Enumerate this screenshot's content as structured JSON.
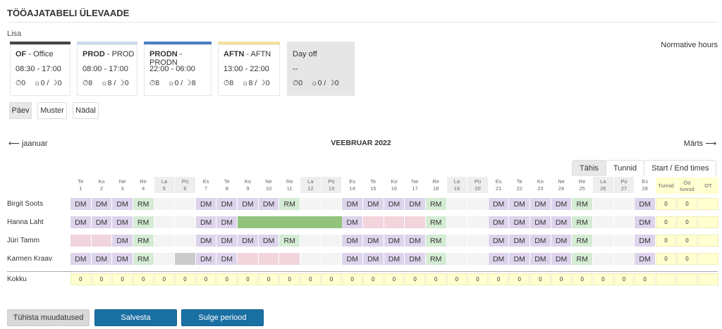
{
  "page": {
    "title": "TÖÖAJATABELI ÜLEVAADE",
    "add_label": "Lisa",
    "normative_label": "Normative hours"
  },
  "shifts": [
    {
      "code": "OF",
      "name": "Office",
      "time": "08:30 - 17:00",
      "hours": "0",
      "daynight": "0 / ",
      "night": "0",
      "color": "#444444"
    },
    {
      "code": "PROD",
      "name": "PROD",
      "time": "08:00 - 17:00",
      "hours": "8",
      "daynight": "8 / ",
      "night": "0",
      "color": "#c9d9ee"
    },
    {
      "code": "PRODN",
      "name": "PRODN",
      "time": "22:00 - 06:00",
      "hours": "8",
      "daynight": "0 / ",
      "night": "8",
      "color": "#4a7fc4"
    },
    {
      "code": "AFTN",
      "name": "AFTN",
      "time": "13:00 - 22:00",
      "hours": "8",
      "daynight": "8 / ",
      "night": "0",
      "color": "#f4e29c"
    },
    {
      "code": "",
      "name": "Day off",
      "time": "--",
      "hours": "0",
      "daynight": "0 / ",
      "night": "0",
      "color": "#e6e6e6"
    }
  ],
  "view_buttons": [
    "Päev",
    "Muster",
    "Nädal"
  ],
  "calendar": {
    "prev_label": "jaanuar",
    "month_title": "VEEBRUAR 2022",
    "next_label": "Märts",
    "tabs": [
      "Tähis",
      "Tunnid",
      "Start / End times"
    ],
    "days": [
      {
        "wd": "Te",
        "d": "1",
        "we": false
      },
      {
        "wd": "Ko",
        "d": "2",
        "we": false
      },
      {
        "wd": "Ne",
        "d": "3",
        "we": false
      },
      {
        "wd": "Re",
        "d": "4",
        "we": false
      },
      {
        "wd": "La",
        "d": "5",
        "we": true
      },
      {
        "wd": "Pü",
        "d": "6",
        "we": true
      },
      {
        "wd": "Es",
        "d": "7",
        "we": false
      },
      {
        "wd": "Te",
        "d": "8",
        "we": false
      },
      {
        "wd": "Ko",
        "d": "9",
        "we": false
      },
      {
        "wd": "Ne",
        "d": "10",
        "we": false
      },
      {
        "wd": "Re",
        "d": "11",
        "we": false
      },
      {
        "wd": "La",
        "d": "12",
        "we": true
      },
      {
        "wd": "Pü",
        "d": "13",
        "we": true
      },
      {
        "wd": "Es",
        "d": "14",
        "we": false
      },
      {
        "wd": "Te",
        "d": "15",
        "we": false
      },
      {
        "wd": "Ko",
        "d": "16",
        "we": false
      },
      {
        "wd": "Ne",
        "d": "17",
        "we": false
      },
      {
        "wd": "Re",
        "d": "18",
        "we": false
      },
      {
        "wd": "La",
        "d": "19",
        "we": true
      },
      {
        "wd": "Pü",
        "d": "20",
        "we": true
      },
      {
        "wd": "Es",
        "d": "21",
        "we": false
      },
      {
        "wd": "Te",
        "d": "22",
        "we": false
      },
      {
        "wd": "Ko",
        "d": "23",
        "we": false
      },
      {
        "wd": "Ne",
        "d": "24",
        "we": false
      },
      {
        "wd": "Re",
        "d": "25",
        "we": false
      },
      {
        "wd": "La",
        "d": "26",
        "we": true
      },
      {
        "wd": "Pü",
        "d": "27",
        "we": true
      },
      {
        "wd": "Es",
        "d": "28",
        "we": false
      }
    ],
    "summary_headers": [
      "Tunnid",
      "Öö tunnid",
      "OT"
    ],
    "colors": {
      "DM": "#ddd4ec",
      "RM": "#d4ebd4",
      "G": "#93c47d",
      "P": "#f2d4dc",
      "X": "#cccccc",
      "E": "#f4f4f4"
    },
    "employees": [
      {
        "name": "Birgit Soots",
        "cells": [
          "DM",
          "DM",
          "DM",
          "RM",
          "E",
          "E",
          "DM",
          "DM",
          "DM",
          "DM",
          "RM",
          "E",
          "E",
          "DM",
          "DM",
          "DM",
          "DM",
          "RM",
          "E",
          "E",
          "DM",
          "DM",
          "DM",
          "DM",
          "RM",
          "E",
          "E",
          "DM"
        ],
        "totals": [
          "0",
          "0",
          ""
        ]
      },
      {
        "name": "Hanna Laht",
        "cells": [
          "DM",
          "DM",
          "DM",
          "RM",
          "E",
          "E",
          "DM",
          "DM",
          "G",
          "G",
          "G",
          "G",
          "G",
          "DM",
          "P",
          "P",
          "P",
          "RM",
          "E",
          "E",
          "DM",
          "DM",
          "DM",
          "DM",
          "RM",
          "E",
          "E",
          "DM"
        ],
        "totals": [
          "0",
          "0",
          ""
        ]
      },
      {
        "name": "Jüri Tamm",
        "cells": [
          "P",
          "P",
          "DM",
          "RM",
          "E",
          "E",
          "DM",
          "DM",
          "DM",
          "DM",
          "RM",
          "E",
          "E",
          "DM",
          "DM",
          "DM",
          "DM",
          "RM",
          "E",
          "E",
          "DM",
          "DM",
          "DM",
          "DM",
          "RM",
          "E",
          "E",
          "DM"
        ],
        "totals": [
          "0",
          "0",
          ""
        ]
      },
      {
        "name": "Karmen Kraav",
        "cells": [
          "DM",
          "DM",
          "DM",
          "RM",
          "E",
          "X",
          "DM",
          "DM",
          "P",
          "P",
          "P",
          "E",
          "E",
          "DM",
          "DM",
          "DM",
          "DM",
          "RM",
          "E",
          "E",
          "DM",
          "DM",
          "DM",
          "DM",
          "RM",
          "E",
          "E",
          "DM"
        ],
        "totals": [
          "0",
          "0",
          ""
        ]
      }
    ],
    "total_row": {
      "label": "Kokku",
      "value": "0"
    }
  },
  "buttons": {
    "discard": "Tühista muudatused",
    "save": "Salvesta",
    "close_period": "Sulge periood"
  }
}
